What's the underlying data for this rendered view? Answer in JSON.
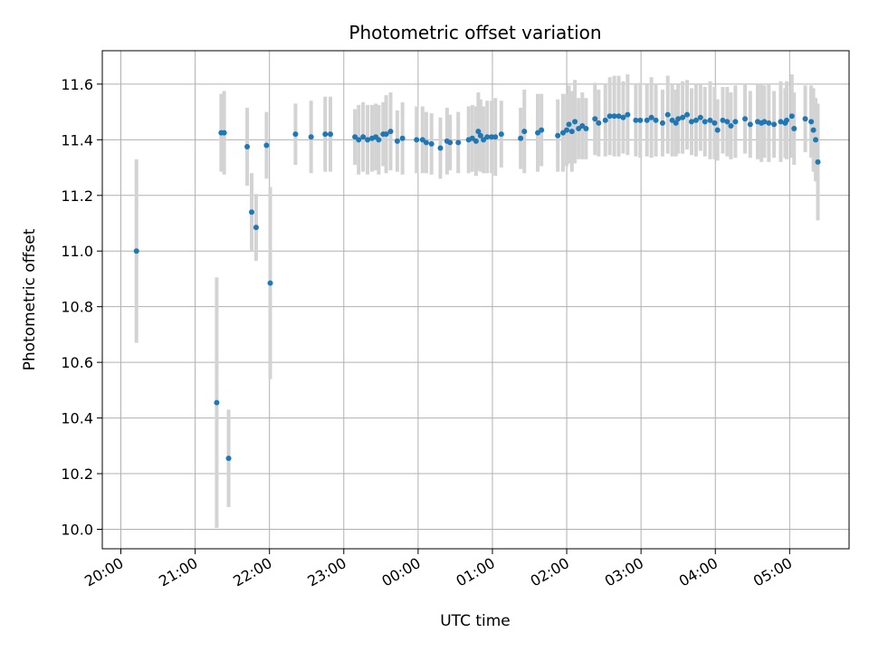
{
  "chart_data": {
    "type": "scatter",
    "title": "Photometric offset variation",
    "xlabel": "UTC time",
    "ylabel": "Photometric offset",
    "x_unit": "hours since 20:00 UTC",
    "xlim": [
      -0.25,
      9.8
    ],
    "ylim": [
      9.93,
      11.72
    ],
    "grid": true,
    "x_ticks": [
      {
        "value": 0,
        "label": "20:00"
      },
      {
        "value": 1,
        "label": "21:00"
      },
      {
        "value": 2,
        "label": "22:00"
      },
      {
        "value": 3,
        "label": "23:00"
      },
      {
        "value": 4,
        "label": "00:00"
      },
      {
        "value": 5,
        "label": "01:00"
      },
      {
        "value": 6,
        "label": "02:00"
      },
      {
        "value": 7,
        "label": "03:00"
      },
      {
        "value": 8,
        "label": "04:00"
      },
      {
        "value": 9,
        "label": "05:00"
      }
    ],
    "y_ticks": [
      {
        "value": 10.0,
        "label": "10.0"
      },
      {
        "value": 10.2,
        "label": "10.2"
      },
      {
        "value": 10.4,
        "label": "10.4"
      },
      {
        "value": 10.6,
        "label": "10.6"
      },
      {
        "value": 10.8,
        "label": "10.8"
      },
      {
        "value": 11.0,
        "label": "11.0"
      },
      {
        "value": 11.2,
        "label": "11.2"
      },
      {
        "value": 11.4,
        "label": "11.4"
      },
      {
        "value": 11.6,
        "label": "11.6"
      }
    ],
    "colors": {
      "points": "#1f77b4",
      "errorbars": "#d3d3d3",
      "grid": "#b0b0b0"
    },
    "series": [
      {
        "points": [
          [
            0.21,
            11.0,
            0.33
          ],
          [
            1.29,
            10.455,
            0.45
          ],
          [
            1.35,
            11.425,
            0.14
          ],
          [
            1.39,
            11.425,
            0.15
          ],
          [
            1.45,
            10.255,
            0.175
          ],
          [
            1.7,
            11.375,
            0.14
          ],
          [
            1.76,
            11.14,
            0.14
          ],
          [
            1.82,
            11.085,
            0.12
          ],
          [
            1.96,
            11.38,
            0.12
          ],
          [
            2.01,
            10.885,
            0.345
          ],
          [
            2.35,
            11.42,
            0.11
          ],
          [
            2.56,
            11.41,
            0.13
          ],
          [
            2.75,
            11.42,
            0.135
          ],
          [
            2.82,
            11.42,
            0.135
          ],
          [
            3.15,
            11.41,
            0.1
          ],
          [
            3.2,
            11.4,
            0.125
          ],
          [
            3.26,
            11.41,
            0.125
          ],
          [
            3.32,
            11.4,
            0.125
          ],
          [
            3.38,
            11.405,
            0.12
          ],
          [
            3.43,
            11.41,
            0.12
          ],
          [
            3.47,
            11.4,
            0.125
          ],
          [
            3.53,
            11.42,
            0.115
          ],
          [
            3.57,
            11.42,
            0.14
          ],
          [
            3.63,
            11.43,
            0.14
          ],
          [
            3.72,
            11.395,
            0.11
          ],
          [
            3.79,
            11.405,
            0.13
          ],
          [
            3.98,
            11.4,
            0.12
          ],
          [
            4.06,
            11.4,
            0.12
          ],
          [
            4.11,
            11.39,
            0.11
          ],
          [
            4.18,
            11.385,
            0.11
          ],
          [
            4.3,
            11.37,
            0.11
          ],
          [
            4.39,
            11.395,
            0.12
          ],
          [
            4.43,
            11.39,
            0.1
          ],
          [
            4.54,
            11.39,
            0.11
          ],
          [
            4.68,
            11.4,
            0.12
          ],
          [
            4.73,
            11.405,
            0.12
          ],
          [
            4.78,
            11.395,
            0.125
          ],
          [
            4.81,
            11.43,
            0.14
          ],
          [
            4.84,
            11.415,
            0.13
          ],
          [
            4.88,
            11.4,
            0.12
          ],
          [
            4.93,
            11.41,
            0.13
          ],
          [
            4.99,
            11.41,
            0.13
          ],
          [
            5.04,
            11.41,
            0.14
          ],
          [
            5.12,
            11.42,
            0.12
          ],
          [
            5.38,
            11.405,
            0.11
          ],
          [
            5.43,
            11.43,
            0.15
          ],
          [
            5.61,
            11.425,
            0.14
          ],
          [
            5.66,
            11.435,
            0.13
          ],
          [
            5.88,
            11.415,
            0.13
          ],
          [
            5.95,
            11.425,
            0.14
          ],
          [
            6.0,
            11.435,
            0.13
          ],
          [
            6.03,
            11.455,
            0.14
          ],
          [
            6.07,
            11.43,
            0.145
          ],
          [
            6.11,
            11.465,
            0.15
          ],
          [
            6.16,
            11.44,
            0.11
          ],
          [
            6.21,
            11.45,
            0.12
          ],
          [
            6.26,
            11.44,
            0.11
          ],
          [
            6.38,
            11.475,
            0.13
          ],
          [
            6.43,
            11.46,
            0.12
          ],
          [
            6.52,
            11.47,
            0.13
          ],
          [
            6.58,
            11.485,
            0.14
          ],
          [
            6.64,
            11.485,
            0.145
          ],
          [
            6.7,
            11.485,
            0.145
          ],
          [
            6.76,
            11.48,
            0.13
          ],
          [
            6.82,
            11.49,
            0.145
          ],
          [
            6.93,
            11.47,
            0.13
          ],
          [
            6.99,
            11.47,
            0.135
          ],
          [
            7.08,
            11.47,
            0.13
          ],
          [
            7.14,
            11.48,
            0.145
          ],
          [
            7.2,
            11.47,
            0.13
          ],
          [
            7.29,
            11.46,
            0.12
          ],
          [
            7.36,
            11.49,
            0.14
          ],
          [
            7.42,
            11.47,
            0.13
          ],
          [
            7.47,
            11.46,
            0.12
          ],
          [
            7.5,
            11.475,
            0.125
          ],
          [
            7.56,
            11.48,
            0.13
          ],
          [
            7.62,
            11.49,
            0.125
          ],
          [
            7.68,
            11.465,
            0.12
          ],
          [
            7.74,
            11.47,
            0.13
          ],
          [
            7.8,
            11.48,
            0.12
          ],
          [
            7.86,
            11.465,
            0.125
          ],
          [
            7.93,
            11.47,
            0.14
          ],
          [
            7.99,
            11.46,
            0.13
          ],
          [
            8.03,
            11.435,
            0.11
          ],
          [
            8.1,
            11.47,
            0.12
          ],
          [
            8.16,
            11.465,
            0.125
          ],
          [
            8.21,
            11.45,
            0.12
          ],
          [
            8.27,
            11.465,
            0.13
          ],
          [
            8.4,
            11.475,
            0.125
          ],
          [
            8.47,
            11.455,
            0.12
          ],
          [
            8.57,
            11.465,
            0.135
          ],
          [
            8.62,
            11.46,
            0.14
          ],
          [
            8.66,
            11.465,
            0.13
          ],
          [
            8.72,
            11.46,
            0.14
          ],
          [
            8.79,
            11.455,
            0.12
          ],
          [
            8.88,
            11.465,
            0.145
          ],
          [
            8.94,
            11.46,
            0.125
          ],
          [
            8.96,
            11.47,
            0.14
          ],
          [
            9.03,
            11.485,
            0.15
          ],
          [
            9.06,
            11.44,
            0.13
          ],
          [
            9.21,
            11.475,
            0.12
          ],
          [
            9.29,
            11.465,
            0.13
          ],
          [
            9.32,
            11.435,
            0.15
          ],
          [
            9.35,
            11.4,
            0.15
          ],
          [
            9.38,
            11.32,
            0.21
          ]
        ]
      }
    ]
  }
}
